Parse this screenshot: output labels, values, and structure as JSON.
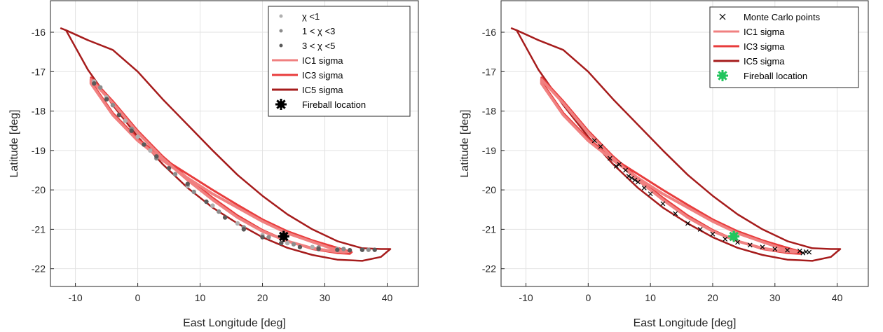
{
  "chart_data": [
    {
      "type": "line",
      "xlabel": "East Longitude [deg]",
      "ylabel": "Latitude [deg]",
      "xlim": [
        -14,
        45
      ],
      "ylim": [
        -22.45,
        -15.2
      ],
      "xticks": [
        -10,
        0,
        10,
        20,
        30,
        40
      ],
      "yticks": [
        -22,
        -21,
        -20,
        -19,
        -18,
        -17,
        -16
      ],
      "grid": true,
      "legend_position": "top-right",
      "series": [
        {
          "name": "χ <1",
          "kind": "points",
          "color": "#b0b0b0",
          "x": [
            -7,
            -5,
            -2,
            0,
            2,
            5,
            8,
            12,
            16,
            20,
            24,
            28,
            32,
            36
          ],
          "y": [
            -17.25,
            -17.65,
            -18.25,
            -18.65,
            -19.0,
            -19.45,
            -19.9,
            -20.4,
            -20.85,
            -21.15,
            -21.35,
            -21.45,
            -21.5,
            -21.52
          ]
        },
        {
          "name": "1 <   χ <3",
          "kind": "points",
          "color": "#8c8c8c",
          "x": [
            -6,
            -4,
            -1,
            1,
            3,
            6,
            9,
            13,
            17,
            21,
            25,
            29,
            33,
            37
          ],
          "y": [
            -17.4,
            -17.85,
            -18.45,
            -18.85,
            -19.2,
            -19.6,
            -20.05,
            -20.55,
            -20.95,
            -21.2,
            -21.38,
            -21.46,
            -21.5,
            -21.52
          ]
        },
        {
          "name": "3 <   χ <5",
          "kind": "points",
          "color": "#5a5a5a",
          "x": [
            -7,
            -5,
            -3,
            -1,
            1,
            3,
            5,
            8,
            11,
            14,
            17,
            20,
            23,
            26,
            29,
            32,
            34,
            36,
            38
          ],
          "y": [
            -17.3,
            -17.7,
            -18.1,
            -18.5,
            -18.85,
            -19.15,
            -19.45,
            -19.85,
            -20.3,
            -20.7,
            -21.0,
            -21.2,
            -21.35,
            -21.45,
            -21.5,
            -21.52,
            -21.53,
            -21.52,
            -21.52
          ]
        },
        {
          "name": "IC1 sigma",
          "kind": "contour",
          "color": "#f08080",
          "x": [
            -7.5,
            -4,
            0,
            4,
            8,
            12,
            16,
            20,
            24,
            28,
            31,
            33,
            33.5,
            31,
            28,
            24,
            20,
            16,
            12,
            8,
            4,
            0,
            -4,
            -7.5
          ],
          "y": [
            -17.2,
            -17.8,
            -18.55,
            -19.2,
            -19.75,
            -20.25,
            -20.7,
            -21.05,
            -21.3,
            -21.48,
            -21.55,
            -21.58,
            -21.57,
            -21.48,
            -21.32,
            -21.1,
            -20.8,
            -20.45,
            -20.1,
            -19.7,
            -19.25,
            -18.75,
            -18.1,
            -17.3
          ]
        },
        {
          "name": "IC3 sigma",
          "kind": "contour",
          "color": "#e83c3c",
          "x": [
            -7.5,
            -4,
            0,
            4,
            8,
            12,
            16,
            20,
            24,
            28,
            32,
            34,
            34.3,
            32,
            28,
            24,
            20,
            16,
            12,
            8,
            4,
            0,
            -4,
            -7.5
          ],
          "y": [
            -17.15,
            -17.75,
            -18.5,
            -19.15,
            -19.7,
            -20.2,
            -20.65,
            -21.02,
            -21.3,
            -21.5,
            -21.6,
            -21.62,
            -21.58,
            -21.47,
            -21.28,
            -21.05,
            -20.75,
            -20.38,
            -20.0,
            -19.6,
            -19.2,
            -18.7,
            -18.05,
            -17.25
          ]
        },
        {
          "name": "IC5 sigma",
          "kind": "contour",
          "color": "#a61c1c",
          "x": [
            -12.3,
            -11.5,
            -8,
            -4,
            0,
            4,
            8,
            12,
            16,
            20,
            24,
            28,
            32,
            36,
            39,
            40.5,
            39,
            36,
            32,
            28,
            24,
            20,
            16,
            12,
            8,
            4,
            0,
            -4,
            -8,
            -11.5,
            -12.3
          ],
          "y": [
            -15.9,
            -15.95,
            -16.95,
            -17.85,
            -18.65,
            -19.35,
            -19.95,
            -20.45,
            -20.85,
            -21.2,
            -21.47,
            -21.65,
            -21.77,
            -21.8,
            -21.7,
            -21.5,
            -21.5,
            -21.48,
            -21.3,
            -21.0,
            -20.62,
            -20.15,
            -19.62,
            -19.0,
            -18.35,
            -17.7,
            -17.0,
            -16.45,
            -16.2,
            -15.95,
            -15.9
          ]
        },
        {
          "name": "Fireball location",
          "kind": "marker",
          "color": "#000000",
          "x": [
            23.4
          ],
          "y": [
            -21.18
          ]
        }
      ]
    },
    {
      "type": "line",
      "xlabel": "East Longitude [deg]",
      "ylabel": "Latitude [deg]",
      "xlim": [
        -14,
        45
      ],
      "ylim": [
        -22.45,
        -15.2
      ],
      "xticks": [
        -10,
        0,
        10,
        20,
        30,
        40
      ],
      "yticks": [
        -22,
        -21,
        -20,
        -19,
        -18,
        -17,
        -16
      ],
      "grid": true,
      "legend_position": "top-right",
      "series": [
        {
          "name": "Monte Carlo points",
          "kind": "points",
          "color": "#000000",
          "x": [
            1,
            2,
            3.5,
            4.5,
            5,
            6,
            6.5,
            7,
            7.5,
            8,
            9,
            10,
            12,
            14,
            16,
            18,
            20,
            22,
            24,
            26,
            28,
            30,
            32,
            34,
            34.5,
            35,
            35.5
          ],
          "y": [
            -18.75,
            -18.9,
            -19.2,
            -19.4,
            -19.35,
            -19.5,
            -19.65,
            -19.7,
            -19.75,
            -19.8,
            -19.95,
            -20.1,
            -20.35,
            -20.6,
            -20.85,
            -21.0,
            -21.12,
            -21.25,
            -21.33,
            -21.4,
            -21.45,
            -21.5,
            -21.53,
            -21.55,
            -21.6,
            -21.57,
            -21.58
          ]
        },
        {
          "name": "IC1 sigma",
          "kind": "contour",
          "color": "#f08080",
          "x": [
            -7.5,
            -4,
            0,
            4,
            8,
            12,
            16,
            20,
            24,
            28,
            31,
            33,
            33.5,
            31,
            28,
            24,
            20,
            16,
            12,
            8,
            4,
            0,
            -4,
            -7.5
          ],
          "y": [
            -17.2,
            -17.8,
            -18.55,
            -19.2,
            -19.75,
            -20.25,
            -20.7,
            -21.05,
            -21.3,
            -21.48,
            -21.55,
            -21.58,
            -21.57,
            -21.48,
            -21.32,
            -21.1,
            -20.8,
            -20.45,
            -20.1,
            -19.7,
            -19.25,
            -18.75,
            -18.1,
            -17.3
          ]
        },
        {
          "name": "IC3 sigma",
          "kind": "contour",
          "color": "#e83c3c",
          "x": [
            -7.5,
            -4,
            0,
            4,
            8,
            12,
            16,
            20,
            24,
            28,
            32,
            34,
            34.3,
            32,
            28,
            24,
            20,
            16,
            12,
            8,
            4,
            0,
            -4,
            -7.5
          ],
          "y": [
            -17.15,
            -17.75,
            -18.5,
            -19.15,
            -19.7,
            -20.2,
            -20.65,
            -21.02,
            -21.3,
            -21.5,
            -21.6,
            -21.62,
            -21.58,
            -21.47,
            -21.28,
            -21.05,
            -20.75,
            -20.38,
            -20.0,
            -19.6,
            -19.2,
            -18.7,
            -18.05,
            -17.25
          ]
        },
        {
          "name": "IC5 sigma",
          "kind": "contour",
          "color": "#a61c1c",
          "x": [
            -12.3,
            -11.5,
            -8,
            -4,
            0,
            4,
            8,
            12,
            16,
            20,
            24,
            28,
            32,
            36,
            39,
            40.5,
            39,
            36,
            32,
            28,
            24,
            20,
            16,
            12,
            8,
            4,
            0,
            -4,
            -8,
            -11.5,
            -12.3
          ],
          "y": [
            -15.9,
            -15.95,
            -16.95,
            -17.85,
            -18.65,
            -19.35,
            -19.95,
            -20.45,
            -20.85,
            -21.2,
            -21.47,
            -21.65,
            -21.77,
            -21.8,
            -21.7,
            -21.5,
            -21.5,
            -21.48,
            -21.3,
            -21.0,
            -20.62,
            -20.15,
            -19.62,
            -19.0,
            -18.35,
            -17.7,
            -17.0,
            -16.45,
            -16.2,
            -15.95,
            -15.9
          ]
        },
        {
          "name": "Fireball location",
          "kind": "marker",
          "color": "#22c55e",
          "x": [
            23.4
          ],
          "y": [
            -21.18
          ]
        }
      ]
    }
  ]
}
